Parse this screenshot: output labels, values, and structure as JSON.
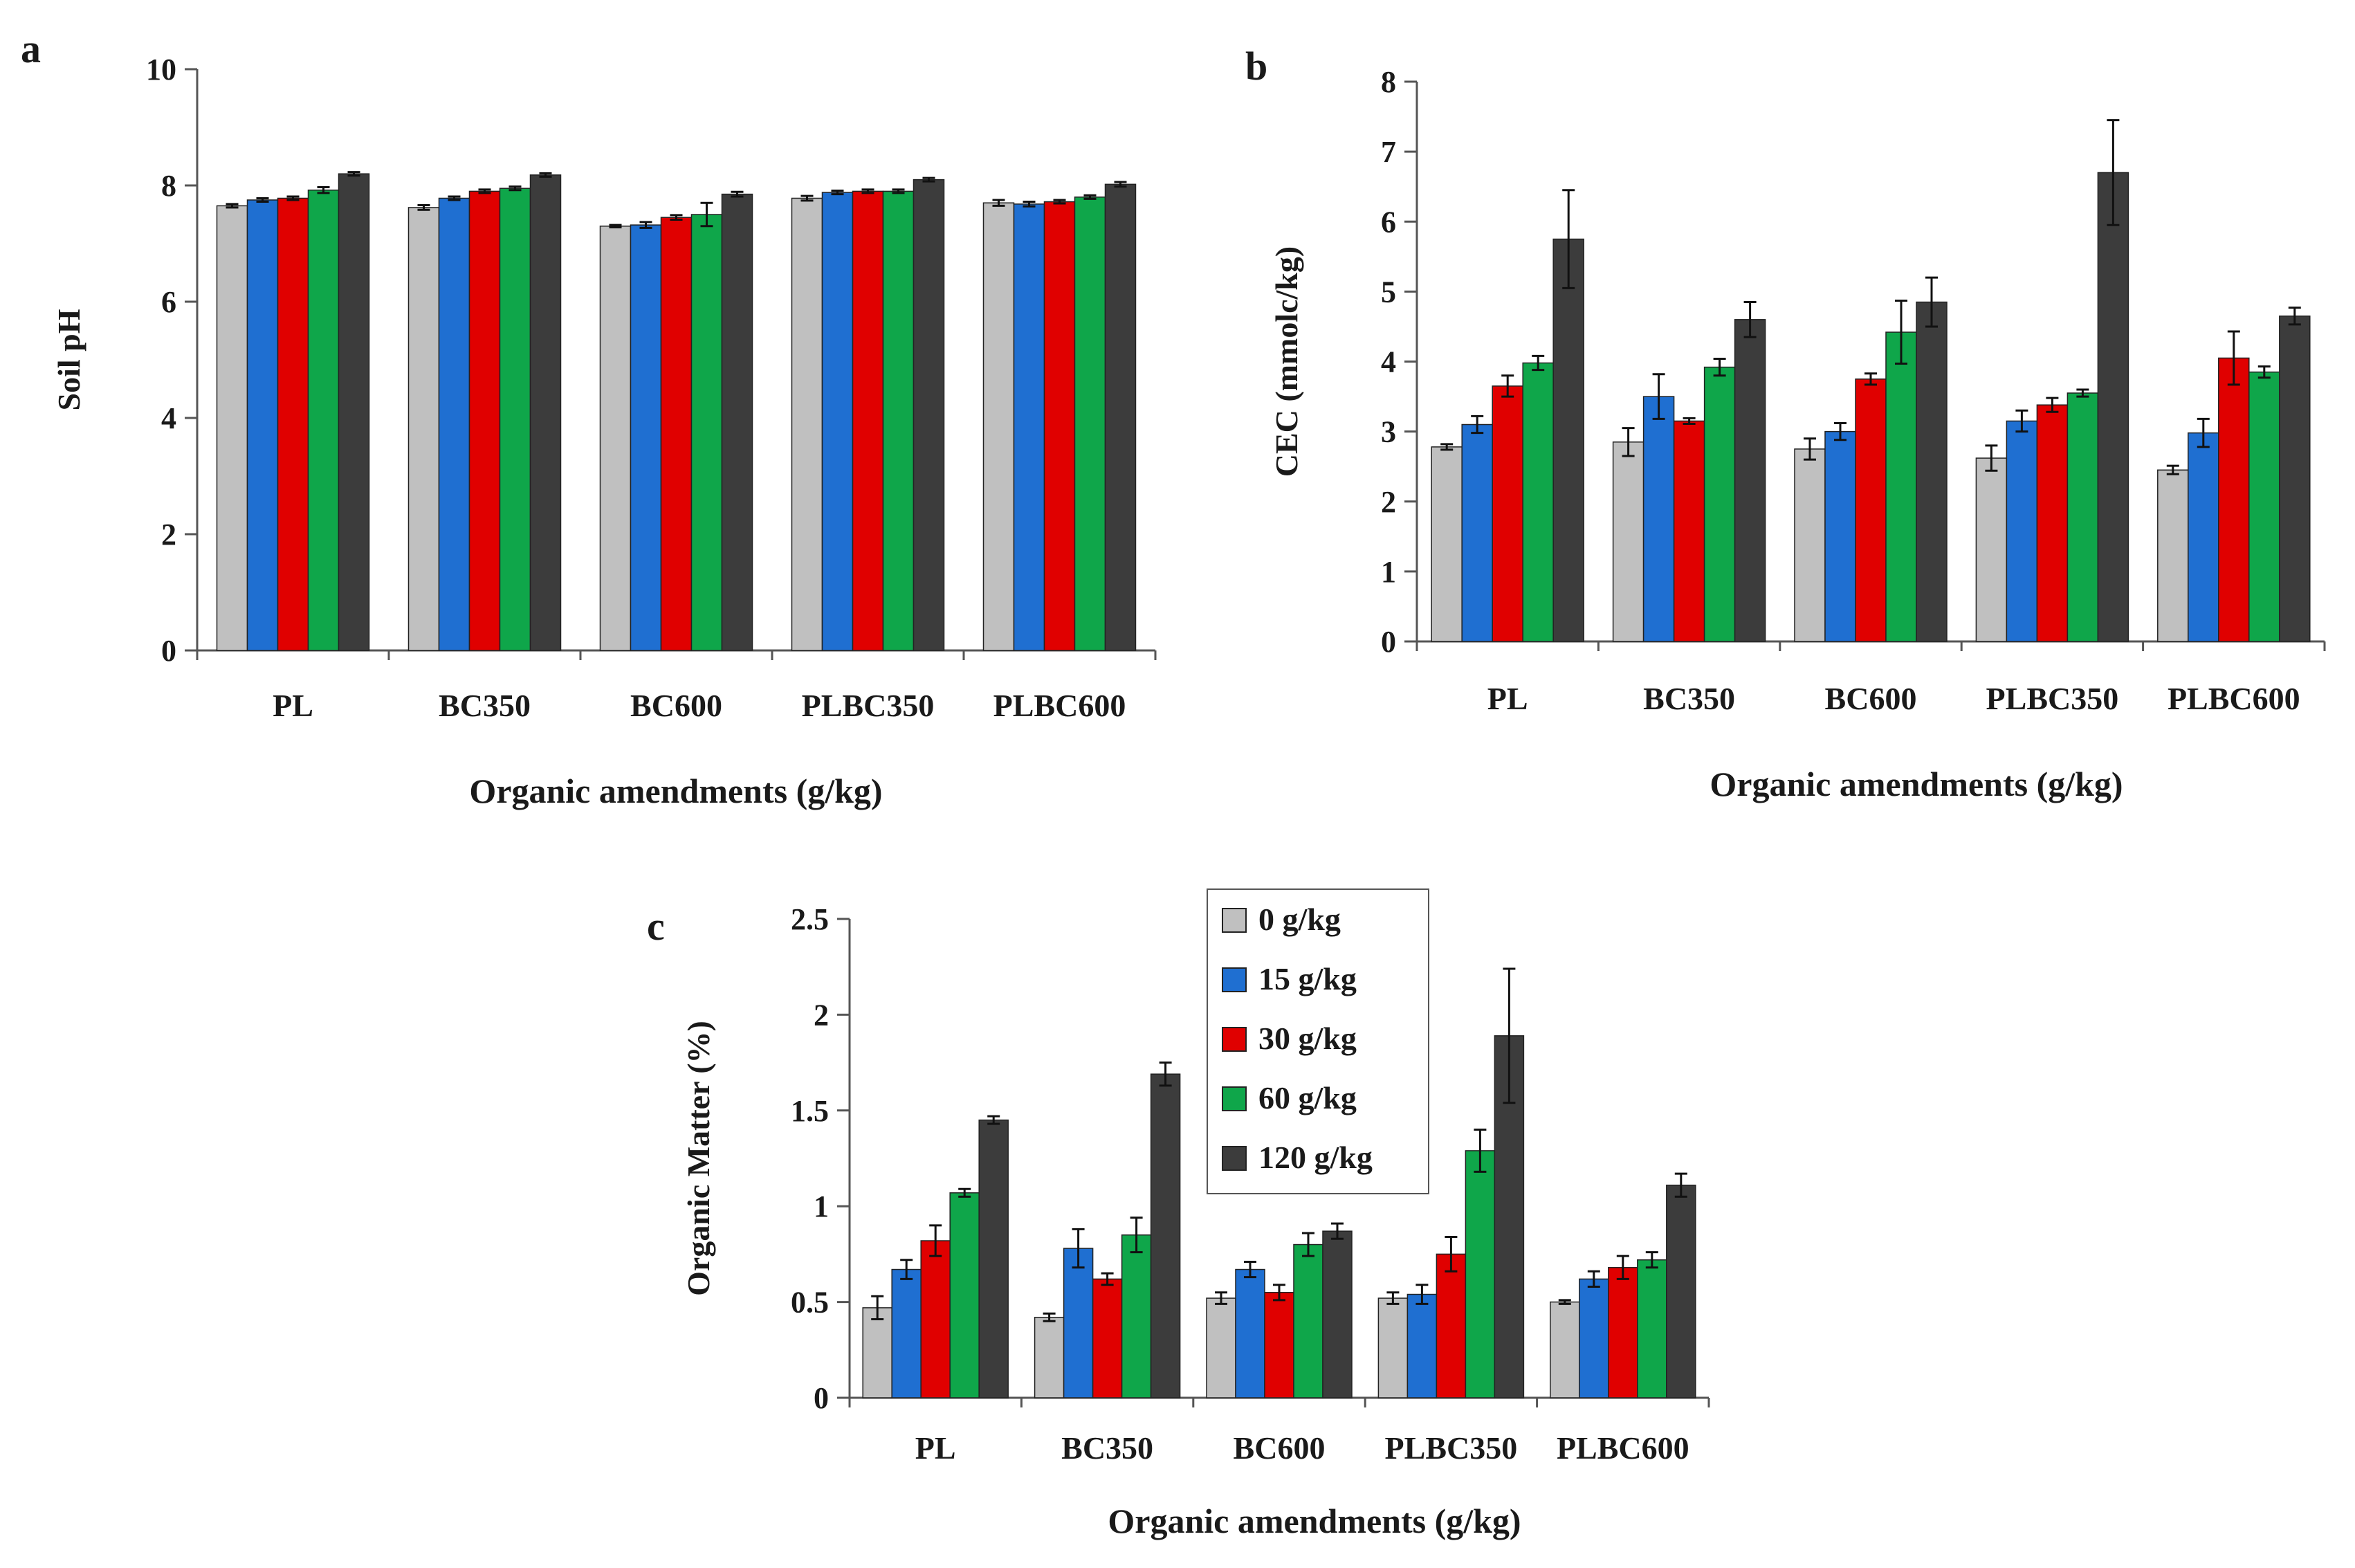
{
  "legend": {
    "entries": [
      {
        "label": "0 g/kg",
        "color": "#c0c0c0"
      },
      {
        "label": "15 g/kg",
        "color": "#1f6fd1"
      },
      {
        "label": "30 g/kg",
        "color": "#e00000"
      },
      {
        "label": "60 g/kg",
        "color": "#0fa64a"
      },
      {
        "label": "120 g/kg",
        "color": "#3c3c3c"
      }
    ]
  },
  "chart_data": [
    {
      "id": "a",
      "panel_label": "a",
      "type": "bar",
      "xlabel": "Organic amendments (g/kg)",
      "ylabel": "Soil pH",
      "ylim": [
        0,
        10
      ],
      "ticks": [
        "0",
        "2",
        "4",
        "6",
        "8",
        "10"
      ],
      "categories": [
        "PL",
        "BC350",
        "BC600",
        "PLBC350",
        "PLBC600"
      ],
      "series": [
        {
          "name": "0 g/kg",
          "values": [
            7.65,
            7.62,
            7.3,
            7.78,
            7.7
          ],
          "errors": [
            0.03,
            0.04,
            0.02,
            0.04,
            0.05
          ]
        },
        {
          "name": "15 g/kg",
          "values": [
            7.75,
            7.78,
            7.32,
            7.88,
            7.68
          ],
          "errors": [
            0.03,
            0.03,
            0.05,
            0.03,
            0.04
          ]
        },
        {
          "name": "30 g/kg",
          "values": [
            7.78,
            7.9,
            7.45,
            7.9,
            7.72
          ],
          "errors": [
            0.03,
            0.03,
            0.04,
            0.03,
            0.03
          ]
        },
        {
          "name": "60 g/kg",
          "values": [
            7.92,
            7.95,
            7.5,
            7.9,
            7.8
          ],
          "errors": [
            0.05,
            0.03,
            0.2,
            0.03,
            0.03
          ]
        },
        {
          "name": "120 g/kg",
          "values": [
            8.2,
            8.18,
            7.85,
            8.1,
            8.02
          ],
          "errors": [
            0.03,
            0.03,
            0.04,
            0.03,
            0.04
          ]
        }
      ]
    },
    {
      "id": "b",
      "panel_label": "b",
      "type": "bar",
      "xlabel": "Organic amendments (g/kg)",
      "ylabel": "CEC (mmolc/kg)",
      "ylim": [
        0,
        8
      ],
      "ticks": [
        "0",
        "1",
        "2",
        "3",
        "4",
        "5",
        "6",
        "7",
        "8"
      ],
      "categories": [
        "PL",
        "BC350",
        "BC600",
        "PLBC350",
        "PLBC600"
      ],
      "series": [
        {
          "name": "0 g/kg",
          "values": [
            2.78,
            2.85,
            2.75,
            2.62,
            2.45
          ],
          "errors": [
            0.04,
            0.2,
            0.15,
            0.18,
            0.06
          ]
        },
        {
          "name": "15 g/kg",
          "values": [
            3.1,
            3.5,
            3.0,
            3.15,
            2.98
          ],
          "errors": [
            0.12,
            0.32,
            0.12,
            0.15,
            0.2
          ]
        },
        {
          "name": "30 g/kg",
          "values": [
            3.65,
            3.15,
            3.75,
            3.38,
            4.05
          ],
          "errors": [
            0.15,
            0.04,
            0.08,
            0.1,
            0.38
          ]
        },
        {
          "name": "60 g/kg",
          "values": [
            3.98,
            3.92,
            4.42,
            3.55,
            3.85
          ],
          "errors": [
            0.1,
            0.12,
            0.45,
            0.05,
            0.08
          ]
        },
        {
          "name": "120 g/kg",
          "values": [
            5.75,
            4.6,
            4.85,
            6.7,
            4.65
          ],
          "errors": [
            0.7,
            0.25,
            0.35,
            0.75,
            0.12
          ]
        }
      ]
    },
    {
      "id": "c",
      "panel_label": "c",
      "type": "bar",
      "xlabel": "Organic amendments (g/kg)",
      "ylabel": "Organic Matter (%)",
      "ylim": [
        0,
        2.5
      ],
      "ticks": [
        "0",
        "0.5",
        "1",
        "1.5",
        "2",
        "2.5"
      ],
      "categories": [
        "PL",
        "BC350",
        "BC600",
        "PLBC350",
        "PLBC600"
      ],
      "series": [
        {
          "name": "0 g/kg",
          "values": [
            0.47,
            0.42,
            0.52,
            0.52,
            0.5
          ],
          "errors": [
            0.06,
            0.02,
            0.03,
            0.03,
            0.01
          ]
        },
        {
          "name": "15 g/kg",
          "values": [
            0.67,
            0.78,
            0.67,
            0.54,
            0.62
          ],
          "errors": [
            0.05,
            0.1,
            0.04,
            0.05,
            0.04
          ]
        },
        {
          "name": "30 g/kg",
          "values": [
            0.82,
            0.62,
            0.55,
            0.75,
            0.68
          ],
          "errors": [
            0.08,
            0.03,
            0.04,
            0.09,
            0.06
          ]
        },
        {
          "name": "60 g/kg",
          "values": [
            1.07,
            0.85,
            0.8,
            1.29,
            0.72
          ],
          "errors": [
            0.02,
            0.09,
            0.06,
            0.11,
            0.04
          ]
        },
        {
          "name": "120 g/kg",
          "values": [
            1.45,
            1.69,
            0.87,
            1.89,
            1.11
          ],
          "errors": [
            0.02,
            0.06,
            0.04,
            0.35,
            0.06
          ]
        }
      ]
    }
  ]
}
